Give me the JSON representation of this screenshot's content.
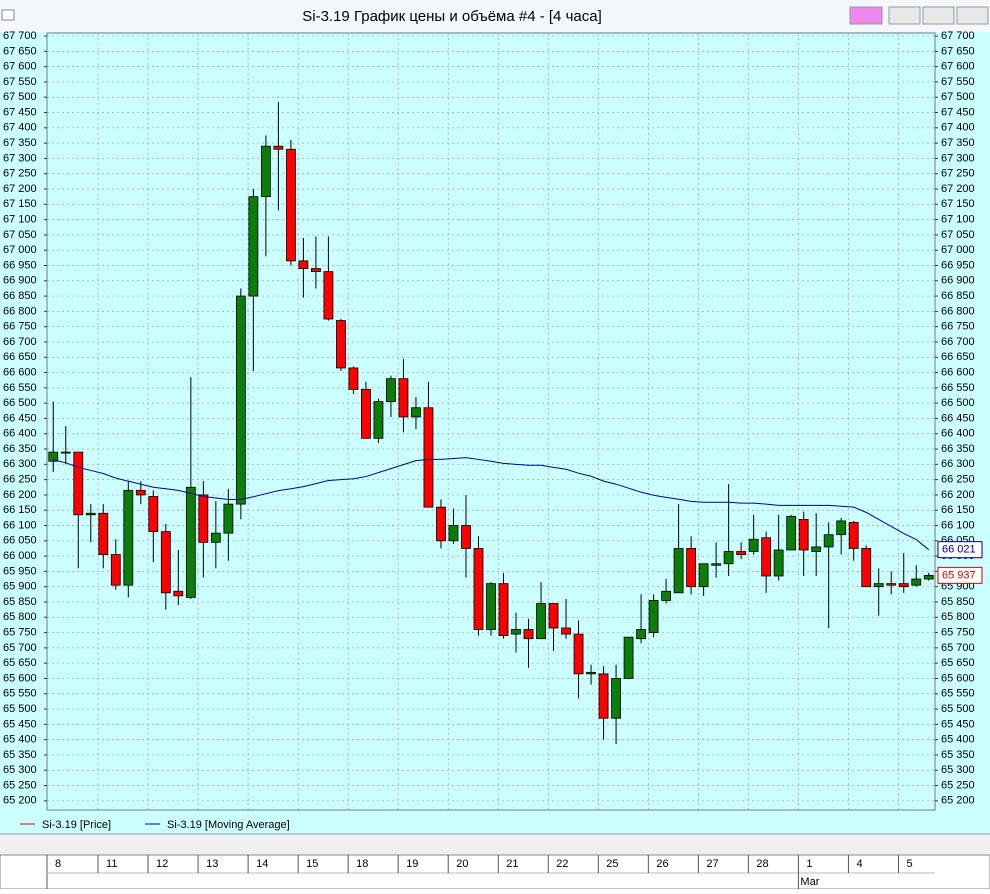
{
  "window_title": "Si-3.19 График цены и объёма #4 - [4 часа]",
  "chart_data": {
    "type": "candlestick",
    "categories": [
      "8",
      null,
      null,
      null,
      "11",
      null,
      null,
      null,
      "12",
      null,
      null,
      null,
      "13",
      null,
      null,
      null,
      "14",
      null,
      null,
      null,
      "15",
      null,
      null,
      null,
      "18",
      null,
      null,
      null,
      "19",
      null,
      null,
      null,
      "20",
      null,
      null,
      null,
      "21",
      null,
      null,
      null,
      "22",
      null,
      null,
      null,
      "25",
      null,
      null,
      null,
      "26",
      null,
      null,
      null,
      "27",
      null,
      null,
      null,
      "28",
      null,
      null,
      null,
      "1",
      null,
      null,
      null,
      "4",
      null,
      null,
      null,
      "5",
      null,
      null
    ],
    "months": [
      null,
      null,
      null,
      null,
      null,
      null,
      null,
      null,
      null,
      null,
      null,
      null,
      null,
      null,
      null,
      null,
      null,
      null,
      null,
      null,
      null,
      null,
      null,
      null,
      null,
      null,
      null,
      null,
      null,
      null,
      null,
      null,
      null,
      null,
      null,
      null,
      null,
      null,
      null,
      null,
      null,
      null,
      null,
      null,
      null,
      null,
      null,
      null,
      null,
      null,
      null,
      null,
      null,
      null,
      null,
      null,
      null,
      null,
      null,
      null,
      "Mar",
      null,
      null,
      null,
      null,
      null,
      null,
      null,
      null,
      null,
      null
    ],
    "series": [
      {
        "name": "Si-3.19 [Price]",
        "color": "#e00000",
        "up_color": "#0a7d0a",
        "down_color": "#ff0000",
        "last_label": "65 937",
        "open": [
          66310,
          66340,
          66340,
          66135,
          66140,
          66005,
          65905,
          66215,
          66195,
          66080,
          65885,
          65865,
          66200,
          66045,
          66075,
          66170,
          66850,
          67175,
          67340,
          67330,
          66965,
          66940,
          66930,
          66770,
          66615,
          66545,
          66385,
          66505,
          66580,
          66455,
          66485,
          66160,
          66050,
          66100,
          66025,
          65760,
          65910,
          65745,
          65760,
          65730,
          65845,
          65765,
          65745,
          65615,
          65615,
          65470,
          65600,
          65730,
          65750,
          65855,
          65880,
          66025,
          65900,
          65970,
          65975,
          66015,
          66015,
          66060,
          65935,
          66020,
          66120,
          66015,
          66030,
          66070,
          66110,
          66025,
          65900,
          65910,
          65910,
          65905,
          65925
        ],
        "high": [
          66505,
          66425,
          66340,
          66170,
          66170,
          66055,
          66245,
          66245,
          66215,
          66105,
          66020,
          66585,
          66245,
          66180,
          66220,
          66875,
          67200,
          67375,
          67485,
          67360,
          67040,
          67045,
          67045,
          66775,
          66620,
          66570,
          66515,
          66590,
          66645,
          66520,
          66570,
          66185,
          66155,
          66200,
          66065,
          65915,
          65945,
          65815,
          65795,
          65915,
          65845,
          65860,
          65790,
          65645,
          65640,
          65645,
          65735,
          65875,
          65875,
          65925,
          66170,
          66065,
          65975,
          66045,
          66235,
          66045,
          66135,
          66080,
          66135,
          66135,
          66145,
          66140,
          66110,
          66125,
          66115,
          66035,
          65960,
          65950,
          66010,
          65970,
          65945
        ],
        "low": [
          66275,
          66300,
          65960,
          66045,
          65960,
          65890,
          65865,
          66170,
          65980,
          65825,
          65840,
          65860,
          65930,
          65960,
          65985,
          66120,
          66605,
          66980,
          67130,
          66950,
          66845,
          66875,
          66770,
          66605,
          66530,
          66385,
          66370,
          66455,
          66405,
          66415,
          66160,
          66025,
          66040,
          65930,
          65740,
          65740,
          65730,
          65685,
          65635,
          65730,
          65690,
          65730,
          65535,
          65580,
          65400,
          65385,
          65600,
          65715,
          65735,
          65845,
          65880,
          65875,
          65870,
          65930,
          65935,
          65990,
          66005,
          65880,
          65920,
          66020,
          65935,
          65935,
          65765,
          66005,
          65985,
          65900,
          65805,
          65875,
          65880,
          65900,
          65920
        ],
        "close": [
          66340,
          66340,
          66135,
          66140,
          66005,
          65905,
          66215,
          66200,
          66080,
          65880,
          65870,
          66225,
          66045,
          66075,
          66170,
          66850,
          67175,
          67340,
          67330,
          66965,
          66940,
          66930,
          66775,
          66615,
          66545,
          66385,
          66505,
          66580,
          66455,
          66485,
          66160,
          66050,
          66100,
          66025,
          65760,
          65910,
          65740,
          65760,
          65730,
          65845,
          65765,
          65745,
          65615,
          65620,
          65470,
          65600,
          65735,
          65760,
          65855,
          65885,
          66025,
          65900,
          65975,
          65975,
          66015,
          66005,
          66055,
          65935,
          66020,
          66130,
          66020,
          66030,
          66070,
          66115,
          66025,
          65900,
          65910,
          65905,
          65900,
          65925,
          65937
        ]
      },
      {
        "name": "Si-3.19 [Moving Average]",
        "color": "#0000a0",
        "last_label": "66 021",
        "values": [
          66315,
          66305,
          66290,
          66280,
          66270,
          66255,
          66245,
          66235,
          66225,
          66220,
          66215,
          66205,
          66195,
          66190,
          66185,
          66185,
          66194,
          66204,
          66214,
          66220,
          66227,
          66237,
          66247,
          66250,
          66253,
          66260,
          66273,
          66286,
          66299,
          66312,
          66316,
          66316,
          66319,
          66322,
          66316,
          66310,
          66303,
          66300,
          66297,
          66297,
          66290,
          66284,
          66271,
          66261,
          66245,
          66235,
          66222,
          66209,
          66199,
          66192,
          66186,
          66179,
          66176,
          66176,
          66176,
          66173,
          66173,
          66170,
          66166,
          66166,
          66166,
          66166,
          66166,
          66163,
          66160,
          66143,
          66120,
          66097,
          66074,
          66054,
          66021
        ]
      }
    ],
    "ylim": [
      65170,
      67710
    ],
    "yticks": [
      {
        "value": 65200,
        "label": "65 200"
      },
      {
        "value": 65250,
        "label": "65 250"
      },
      {
        "value": 65300,
        "label": "65 300"
      },
      {
        "value": 65350,
        "label": "65 350"
      },
      {
        "value": 65400,
        "label": "65 400"
      },
      {
        "value": 65450,
        "label": "65 450"
      },
      {
        "value": 65500,
        "label": "65 500"
      },
      {
        "value": 65550,
        "label": "65 550"
      },
      {
        "value": 65600,
        "label": "65 600"
      },
      {
        "value": 65650,
        "label": "65 650"
      },
      {
        "value": 65700,
        "label": "65 700"
      },
      {
        "value": 65750,
        "label": "65 750"
      },
      {
        "value": 65800,
        "label": "65 800"
      },
      {
        "value": 65850,
        "label": "65 850"
      },
      {
        "value": 65900,
        "label": "65 900"
      },
      {
        "value": 65950,
        "label": "65 950"
      },
      {
        "value": 66000,
        "label": "66 000"
      },
      {
        "value": 66050,
        "label": "66 050"
      },
      {
        "value": 66100,
        "label": "66 100"
      },
      {
        "value": 66150,
        "label": "66 150"
      },
      {
        "value": 66200,
        "label": "66 200"
      },
      {
        "value": 66250,
        "label": "66 250"
      },
      {
        "value": 66300,
        "label": "66 300"
      },
      {
        "value": 66350,
        "label": "66 350"
      },
      {
        "value": 66400,
        "label": "66 400"
      },
      {
        "value": 66450,
        "label": "66 450"
      },
      {
        "value": 66500,
        "label": "66 500"
      },
      {
        "value": 66550,
        "label": "66 550"
      },
      {
        "value": 66600,
        "label": "66 600"
      },
      {
        "value": 66650,
        "label": "66 650"
      },
      {
        "value": 66700,
        "label": "66 700"
      },
      {
        "value": 66750,
        "label": "66 750"
      },
      {
        "value": 66800,
        "label": "66 800"
      },
      {
        "value": 66850,
        "label": "66 850"
      },
      {
        "value": 66900,
        "label": "66 900"
      },
      {
        "value": 66950,
        "label": "66 950"
      },
      {
        "value": 67000,
        "label": "67 000"
      },
      {
        "value": 67050,
        "label": "67 050"
      },
      {
        "value": 67100,
        "label": "67 100"
      },
      {
        "value": 67150,
        "label": "67 150"
      },
      {
        "value": 67200,
        "label": "67 200"
      },
      {
        "value": 67250,
        "label": "67 250"
      },
      {
        "value": 67300,
        "label": "67 300"
      },
      {
        "value": 67350,
        "label": "67 350"
      },
      {
        "value": 67400,
        "label": "67 400"
      },
      {
        "value": 67450,
        "label": "67 450"
      },
      {
        "value": 67500,
        "label": "67 500"
      },
      {
        "value": 67550,
        "label": "67 550"
      },
      {
        "value": 67600,
        "label": "67 600"
      },
      {
        "value": 67650,
        "label": "67 650"
      },
      {
        "value": 67700,
        "label": "67 700"
      }
    ],
    "grid": true
  }
}
